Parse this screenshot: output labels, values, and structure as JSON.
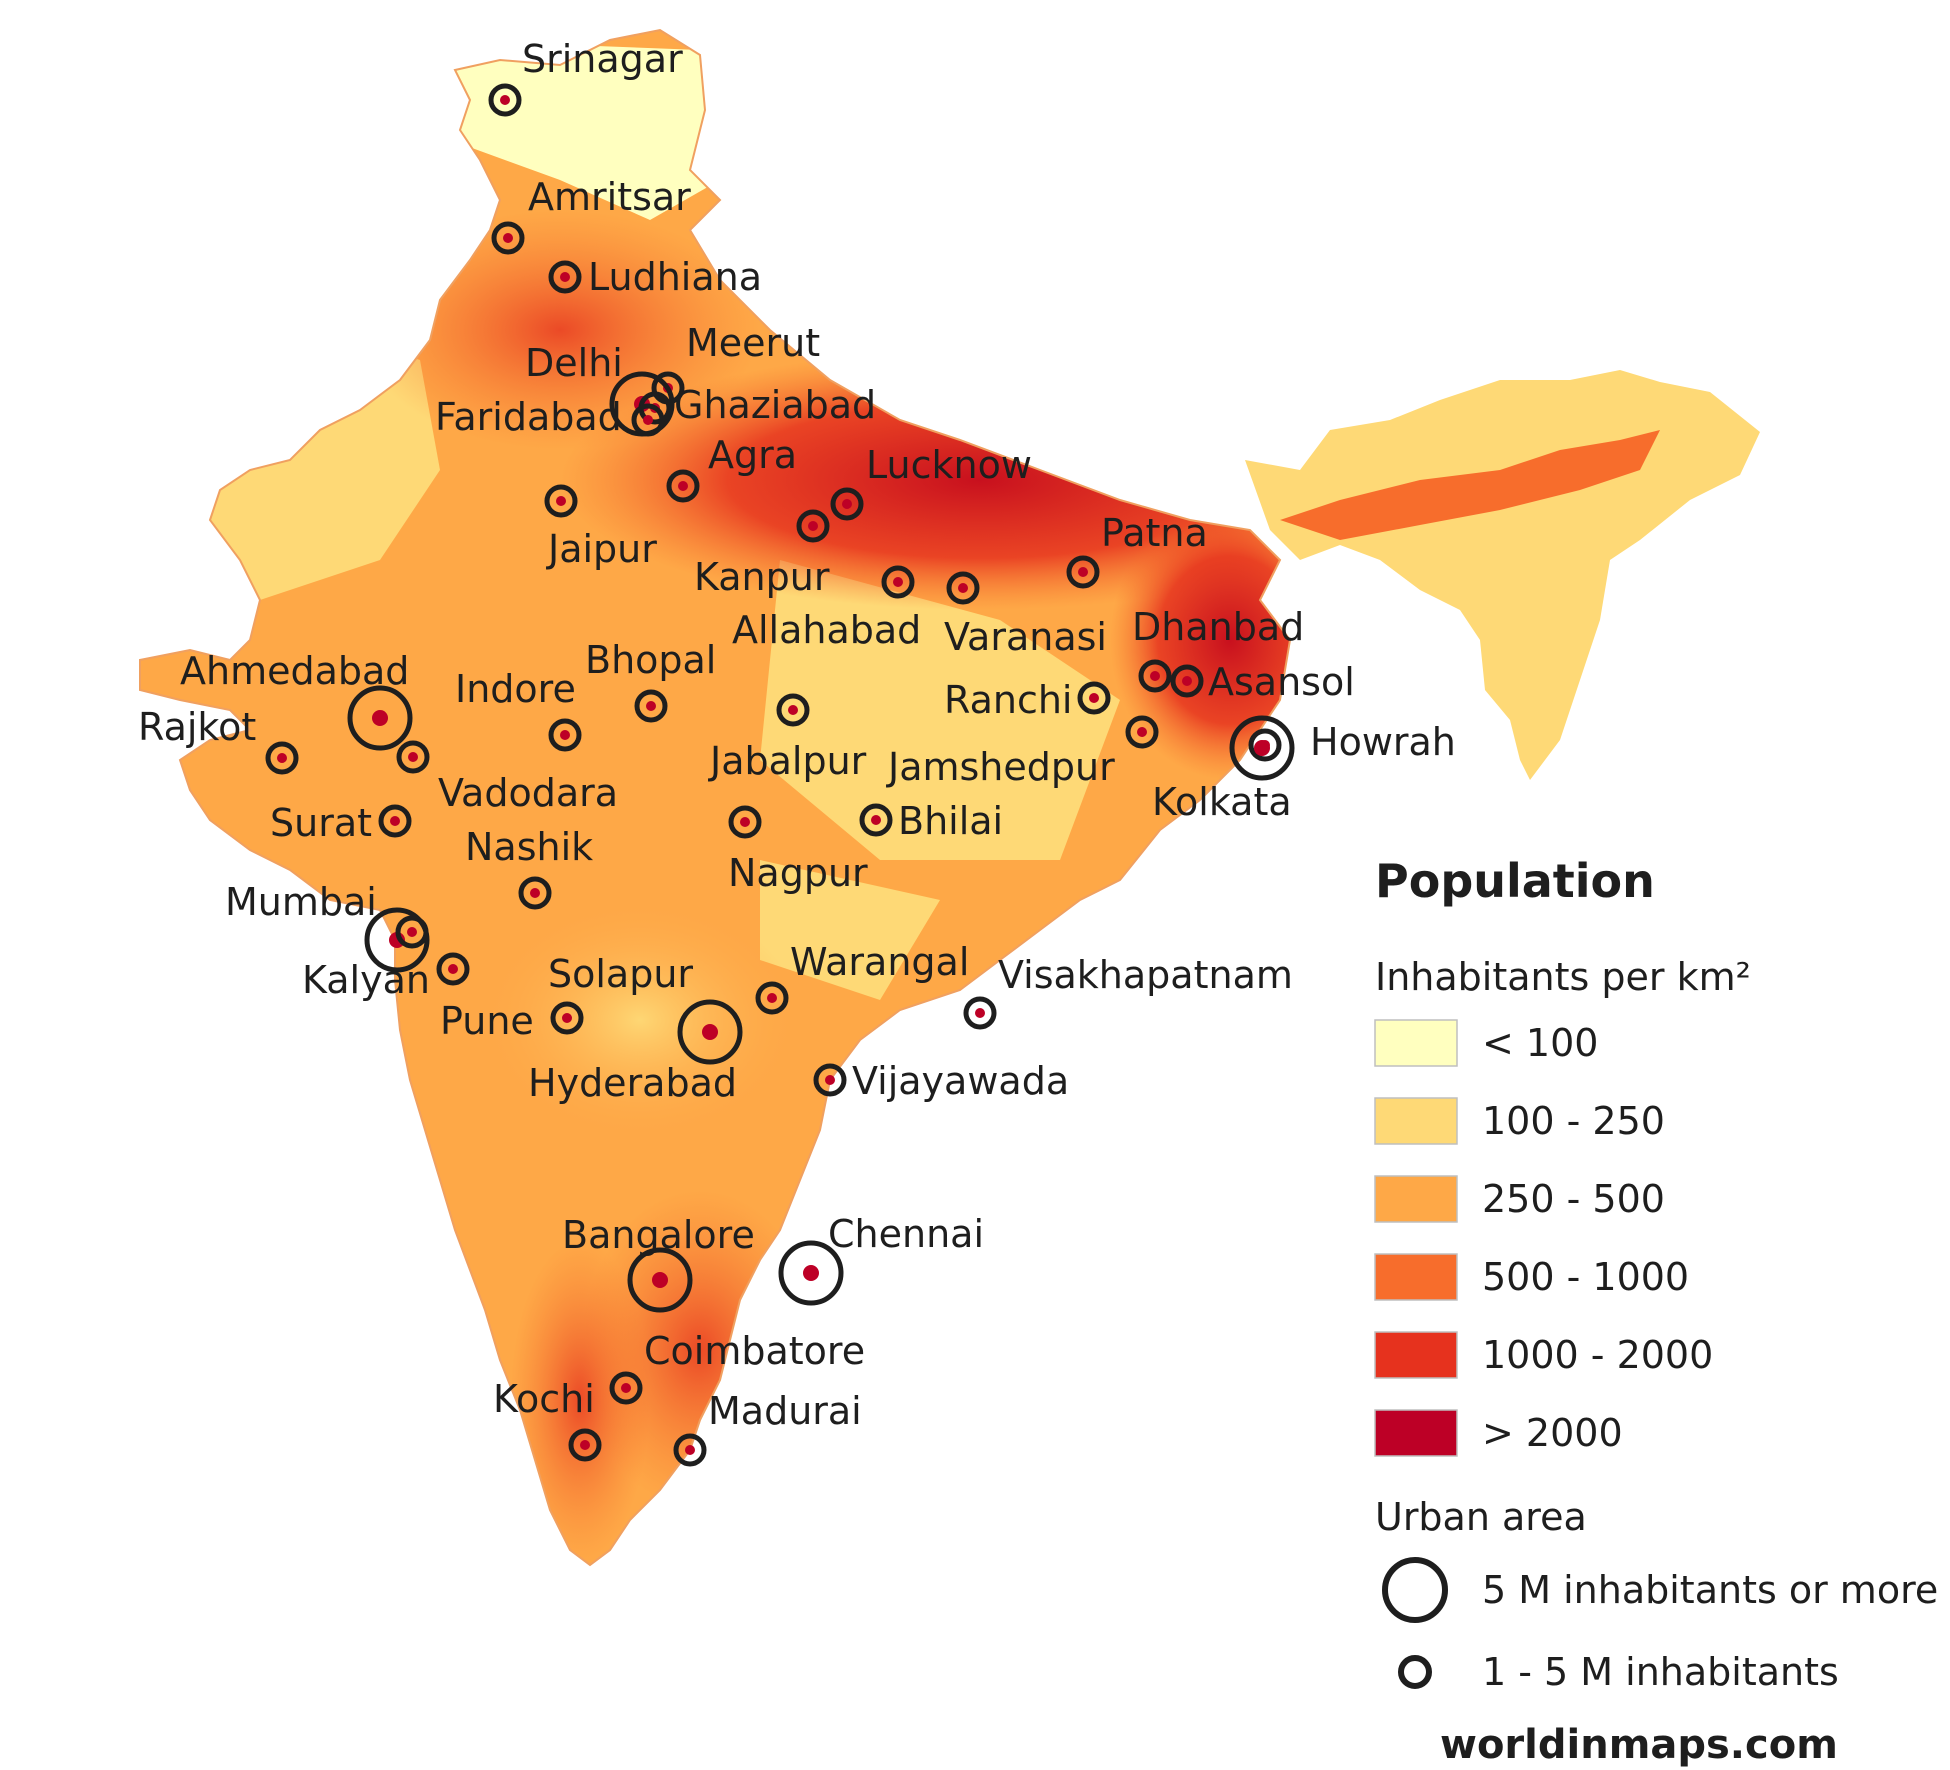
{
  "legend": {
    "title": "Population",
    "density_title": "Inhabitants per km²",
    "density_classes": [
      {
        "label": "< 100",
        "color": "#ffffbf"
      },
      {
        "label": "100 - 250",
        "color": "#fed976"
      },
      {
        "label": "250 - 500",
        "color": "#fea847"
      },
      {
        "label": "500 - 1000",
        "color": "#f76d2c"
      },
      {
        "label": "1000 - 2000",
        "color": "#e6321e"
      },
      {
        "label": "> 2000",
        "color": "#bd0026"
      }
    ],
    "urban_title": "Urban area",
    "urban_classes": [
      {
        "label": "5 M inhabitants or more",
        "symbol": "large-circle-icon"
      },
      {
        "label": "1 - 5 M inhabitants",
        "symbol": "small-circle-icon"
      }
    ]
  },
  "credit": "worldinmaps.com",
  "cities": [
    {
      "name": "Srinagar",
      "class": "small"
    },
    {
      "name": "Amritsar",
      "class": "small"
    },
    {
      "name": "Ludhiana",
      "class": "small"
    },
    {
      "name": "Meerut",
      "class": "small"
    },
    {
      "name": "Delhi",
      "class": "large"
    },
    {
      "name": "Ghaziabad",
      "class": "small"
    },
    {
      "name": "Faridabad",
      "class": "small"
    },
    {
      "name": "Agra",
      "class": "small"
    },
    {
      "name": "Lucknow",
      "class": "small"
    },
    {
      "name": "Jaipur",
      "class": "small"
    },
    {
      "name": "Kanpur",
      "class": "small"
    },
    {
      "name": "Patna",
      "class": "small"
    },
    {
      "name": "Allahabad",
      "class": "small"
    },
    {
      "name": "Varanasi",
      "class": "small"
    },
    {
      "name": "Dhanbad",
      "class": "small"
    },
    {
      "name": "Asansol",
      "class": "small"
    },
    {
      "name": "Ranchi",
      "class": "small"
    },
    {
      "name": "Howrah",
      "class": "small"
    },
    {
      "name": "Kolkata",
      "class": "large"
    },
    {
      "name": "Jamshedpur",
      "class": "small"
    },
    {
      "name": "Ahmedabad",
      "class": "large"
    },
    {
      "name": "Indore",
      "class": "small"
    },
    {
      "name": "Bhopal",
      "class": "small"
    },
    {
      "name": "Rajkot",
      "class": "small"
    },
    {
      "name": "Vadodara",
      "class": "small"
    },
    {
      "name": "Jabalpur",
      "class": "small"
    },
    {
      "name": "Surat",
      "class": "small"
    },
    {
      "name": "Bhilai",
      "class": "small"
    },
    {
      "name": "Nashik",
      "class": "small"
    },
    {
      "name": "Nagpur",
      "class": "small"
    },
    {
      "name": "Mumbai",
      "class": "large"
    },
    {
      "name": "Kalyan",
      "class": "small"
    },
    {
      "name": "Solapur",
      "class": "small"
    },
    {
      "name": "Warangal",
      "class": "small"
    },
    {
      "name": "Visakhapatnam",
      "class": "small"
    },
    {
      "name": "Pune",
      "class": "small"
    },
    {
      "name": "Hyderabad",
      "class": "large"
    },
    {
      "name": "Vijayawada",
      "class": "small"
    },
    {
      "name": "Bangalore",
      "class": "large"
    },
    {
      "name": "Chennai",
      "class": "large"
    },
    {
      "name": "Coimbatore",
      "class": "small"
    },
    {
      "name": "Kochi",
      "class": "small"
    },
    {
      "name": "Madurai",
      "class": "small"
    }
  ]
}
